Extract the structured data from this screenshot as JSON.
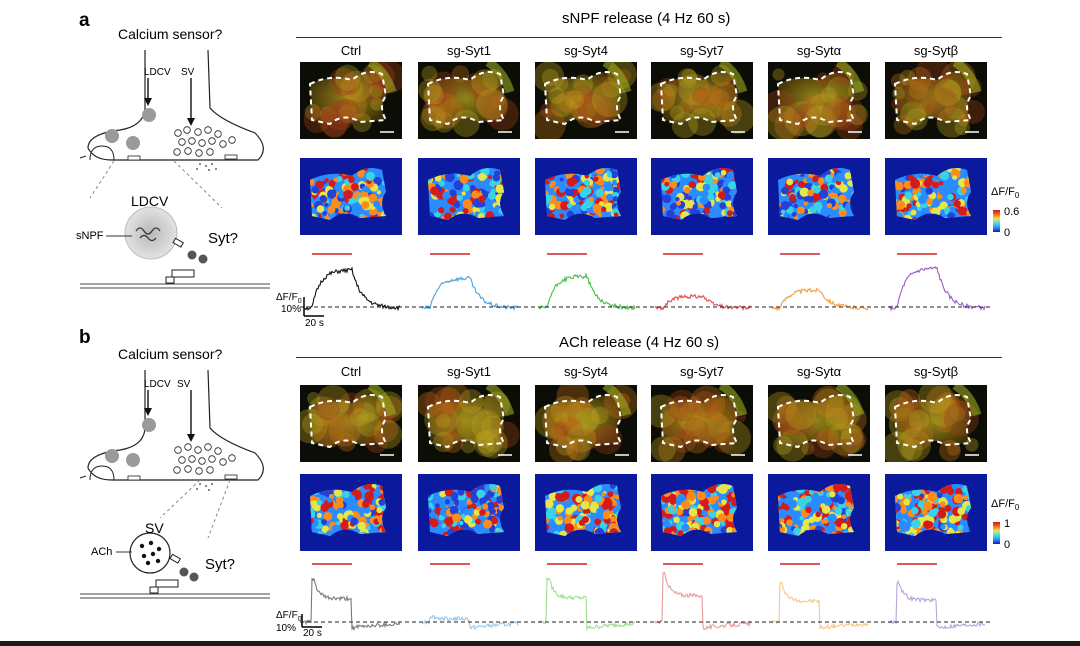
{
  "panel_a": {
    "letter": "a",
    "schematic": {
      "title": "Calcium sensor?",
      "ldcv_label": "LDCV",
      "sv_label": "SV",
      "zoom_label": "LDCV",
      "cargo_label": "sNPF",
      "syt_label": "Syt?"
    },
    "section_title": "sNPF release (4 Hz 60 s)",
    "colorbar": {
      "label_html": "ΔF/F",
      "sub": "0",
      "max": "0.6",
      "min": "0"
    },
    "scale": {
      "y_label": "ΔF/F",
      "y_sub": "0",
      "y_value": "10%",
      "x_value": "20 s"
    }
  },
  "panel_b": {
    "letter": "b",
    "schematic": {
      "title": "Calcium sensor?",
      "ldcv_label": "LDCV",
      "sv_label": "SV",
      "zoom_label": "SV",
      "cargo_label": "ACh",
      "syt_label": "Syt?"
    },
    "section_title": "ACh release (4 Hz 60 s)",
    "colorbar": {
      "label_html": "ΔF/F",
      "sub": "0",
      "max": "1",
      "min": "0"
    },
    "scale": {
      "y_label": "ΔF/F",
      "y_sub": "0",
      "y_value": "10%",
      "x_value": "20 s"
    }
  },
  "conditions": [
    "Ctrl",
    "sg-Syt1",
    "sg-Syt4",
    "sg-Syt7",
    "sg-Sytα",
    "sg-Sytβ"
  ],
  "trace_colors": {
    "a": [
      "#111111",
      "#4aa3e0",
      "#3fbf3f",
      "#e05050",
      "#f0a040",
      "#9a5cc8"
    ],
    "b": [
      "#7a7a7a",
      "#9cc8ea",
      "#9fdd8a",
      "#eb9a9a",
      "#f3c98c",
      "#b9a3dc"
    ]
  },
  "stim_bar_color": "#d22020"
}
